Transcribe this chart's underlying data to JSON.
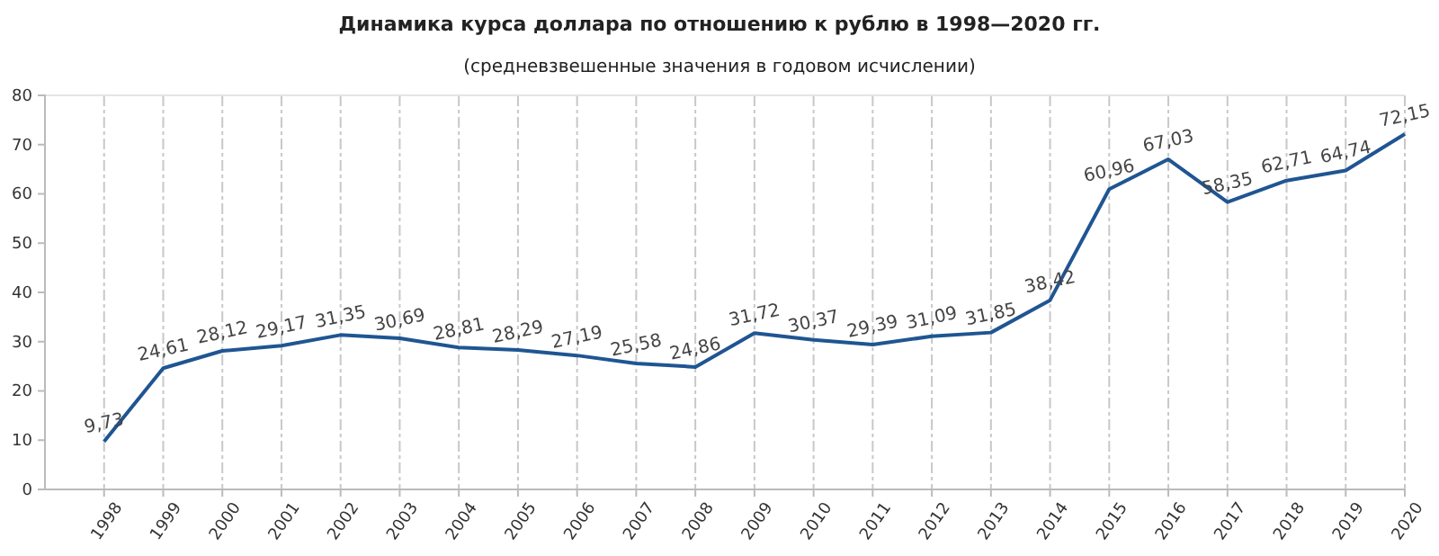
{
  "chart_data": {
    "type": "line",
    "title": "Динамика курса доллара по отношению к рублю в 1998—2020 гг.",
    "subtitle": "(средневзвешенные значения в годовом исчислении)",
    "categories": [
      "1998",
      "1999",
      "2000",
      "2001",
      "2002",
      "2003",
      "2004",
      "2005",
      "2006",
      "2007",
      "2008",
      "2009",
      "2010",
      "2011",
      "2012",
      "2013",
      "2014",
      "2015",
      "2016",
      "2017",
      "2018",
      "2019",
      "2020"
    ],
    "series": [
      {
        "color": "#1f5592",
        "values": [
          9.73,
          24.61,
          28.12,
          29.17,
          31.35,
          30.69,
          28.81,
          28.29,
          27.19,
          25.58,
          24.86,
          31.72,
          30.37,
          29.39,
          31.09,
          31.85,
          38.42,
          60.96,
          67.03,
          58.35,
          62.71,
          64.74,
          72.15
        ],
        "value_labels": [
          "9,73",
          "24,61",
          "28,12",
          "29,17",
          "31,35",
          "30,69",
          "28,81",
          "28,29",
          "27,19",
          "25,58",
          "24,86",
          "31,72",
          "30,37",
          "29,39",
          "31,09",
          "31,85",
          "38,42",
          "60,96",
          "67,03",
          "58,35",
          "62,71",
          "64,74",
          "72,15"
        ]
      }
    ],
    "ylim": [
      0,
      80
    ],
    "yticks": [
      0,
      10,
      20,
      30,
      40,
      50,
      60,
      70,
      80
    ],
    "grid": "x",
    "marker": "none",
    "line_style": "solid"
  }
}
